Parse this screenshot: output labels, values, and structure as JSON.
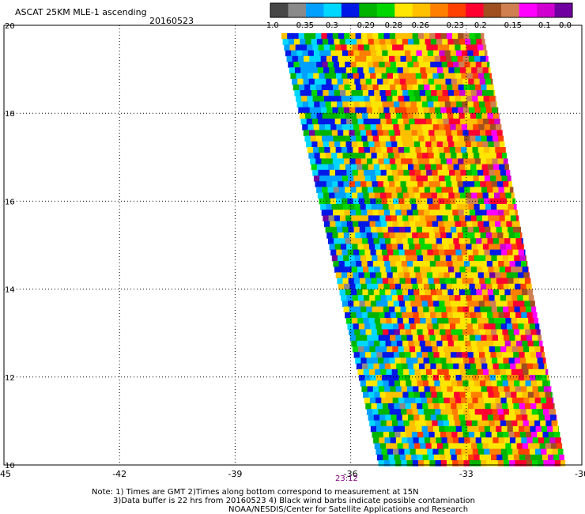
{
  "title": "ASCAT 25KM MLE-1 ascending",
  "date": "20160523",
  "colorbar": {
    "colors": [
      "#474747",
      "#8a8a8a",
      "#00a0ff",
      "#00d7ff",
      "#0018e6",
      "#00b400",
      "#00d700",
      "#ffe600",
      "#ffc000",
      "#ff8000",
      "#ff4000",
      "#ff0030",
      "#a05020",
      "#d08050",
      "#ff00ff",
      "#d000d0",
      "#7000a0"
    ],
    "labels": [
      "-1.0",
      "-0.35",
      "-0.3",
      "-0.29",
      "-0.28",
      "-0.26",
      "-0.23",
      "-0.2",
      "-0.15",
      "-0.1",
      "0.0"
    ]
  },
  "lon_ticks": [
    "-45",
    "-42",
    "-39",
    "-36",
    "-33",
    "-30"
  ],
  "lat_ticks": [
    "20",
    "18",
    "16",
    "14",
    "12",
    "10"
  ],
  "time_label": "23:12",
  "notes": [
    "Note: 1) Times are GMT 2)Times along bottom correspond to measurement at 15N",
    "3)Data buffer is 22 hrs from 20160523 4) Black wind barbs indicate possible contamination",
    "NOAA/NESDIS/Center for Satellite Applications and Research"
  ]
}
